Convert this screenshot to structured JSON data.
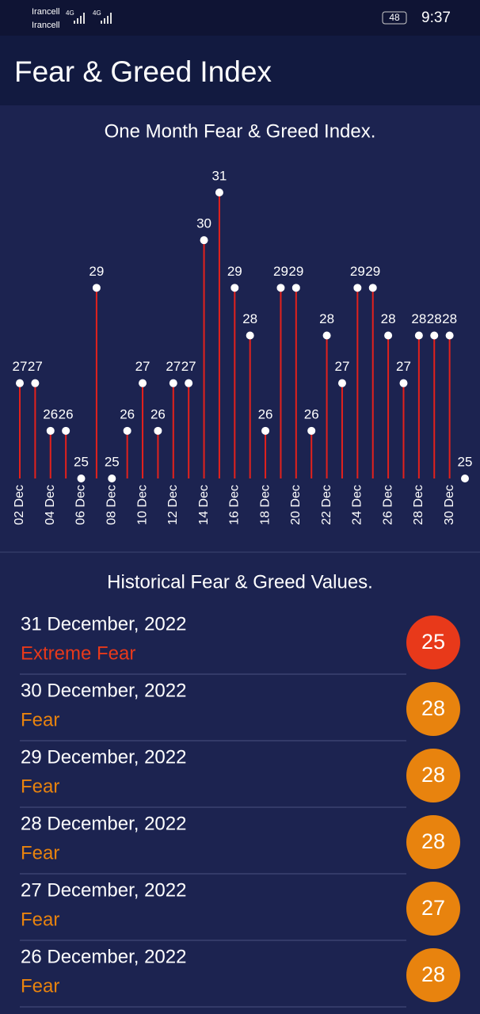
{
  "status_bar": {
    "carrier_1": "Irancell",
    "carrier_2": "Irancell",
    "network_1": "4G",
    "network_2": "4G",
    "battery": "48",
    "time": "9:37"
  },
  "header": {
    "title": "Fear & Greed Index"
  },
  "chart_data": {
    "type": "lollipop",
    "title": "One Month Fear & Greed Index.",
    "categories": [
      "02 Dec",
      null,
      "04 Dec",
      null,
      "06 Dec",
      null,
      "08 Dec",
      null,
      "10 Dec",
      null,
      "12 Dec",
      null,
      "14 Dec",
      null,
      "16 Dec",
      null,
      "18 Dec",
      null,
      "20 Dec",
      null,
      "22 Dec",
      null,
      "24 Dec",
      null,
      "26 Dec",
      null,
      "28 Dec",
      null,
      "30 Dec",
      null
    ],
    "values": [
      27,
      27,
      26,
      26,
      25,
      29,
      25,
      26,
      27,
      26,
      27,
      27,
      30,
      31,
      29,
      28,
      26,
      29,
      29,
      26,
      28,
      27,
      29,
      29,
      28,
      27,
      28,
      28,
      28,
      25
    ],
    "color": "#e3211c",
    "marker_color": "#ffffff",
    "ylim": [
      25,
      31
    ]
  },
  "history": {
    "title": "Historical Fear & Greed Values.",
    "items": [
      {
        "date": "31 December, 2022",
        "sentiment": "Extreme Fear",
        "value": 25,
        "color": "#e8391a"
      },
      {
        "date": "30 December, 2022",
        "sentiment": "Fear",
        "value": 28,
        "color": "#e8830e"
      },
      {
        "date": "29 December, 2022",
        "sentiment": "Fear",
        "value": 28,
        "color": "#e8830e"
      },
      {
        "date": "28 December, 2022",
        "sentiment": "Fear",
        "value": 28,
        "color": "#e8830e"
      },
      {
        "date": "27 December, 2022",
        "sentiment": "Fear",
        "value": 27,
        "color": "#e8830e"
      },
      {
        "date": "26 December, 2022",
        "sentiment": "Fear",
        "value": 28,
        "color": "#e8830e"
      }
    ]
  }
}
